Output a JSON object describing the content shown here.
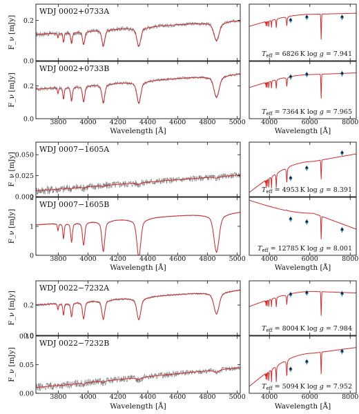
{
  "chart_data": [
    {
      "type": "line",
      "block": 1,
      "xlabel": "Wavelength [Å]",
      "spectrum_x_ticks": [
        3800,
        4000,
        4200,
        4400,
        4600,
        4800,
        5000
      ],
      "photometry_x_ticks": [
        4000,
        6000,
        8000
      ],
      "stars": [
        {
          "name": "WDJ 0002+0733A",
          "ylabel": "F_ν [mJy]",
          "ylim": [
            0,
            0.28
          ],
          "yticks": [
            0.0,
            0.2
          ],
          "ytick_labels": [
            "0.0",
            "0.2"
          ],
          "continuum_start": 0.13,
          "continuum_end": 0.2,
          "noise": 0.011,
          "line_depths": [
            0.03,
            0.035,
            0.04,
            0.05,
            0.06,
            0.07
          ],
          "model_start": 0.17,
          "model_peak": 0.23,
          "model_end": 0.235,
          "photometry_points": [
            [
              5050,
              0.2
            ],
            [
              5850,
              0.215
            ],
            [
              7600,
              0.215
            ]
          ],
          "teff": "6826",
          "logg": "7.941"
        },
        {
          "name": "WDJ 0002+0733B",
          "ylabel": "F_ν [mJy]",
          "ylim": [
            0,
            0.35
          ],
          "yticks": [
            0.0,
            0.2
          ],
          "ytick_labels": [
            "0.0",
            "0.2"
          ],
          "continuum_start": 0.18,
          "continuum_end": 0.275,
          "noise": 0.01,
          "line_depths": [
            0.045,
            0.055,
            0.065,
            0.075,
            0.085,
            0.1
          ],
          "model_start": 0.19,
          "model_peak": 0.27,
          "model_end": 0.28,
          "photometry_points": [
            [
              5050,
              0.255
            ],
            [
              5850,
              0.27
            ],
            [
              7600,
              0.275
            ]
          ],
          "teff": "7364",
          "logg": "7.965"
        }
      ]
    },
    {
      "type": "line",
      "block": 2,
      "xlabel": "Wavelength [Å]",
      "spectrum_x_ticks": [
        3800,
        4000,
        4200,
        4400,
        4600,
        4800,
        5000
      ],
      "photometry_x_ticks": [
        4000,
        6000,
        8000
      ],
      "stars": [
        {
          "name": "WDJ 0007−1605A",
          "ylabel": "F_ν [mJy]",
          "ylim": [
            0,
            0.065
          ],
          "yticks": [
            0.0,
            0.025,
            0.05
          ],
          "ytick_labels": [
            "0.000",
            "0.025",
            "0.050"
          ],
          "continuum_start": 0.007,
          "continuum_end": 0.026,
          "noise": 0.0045,
          "line_depths": [
            0.0005,
            0.0006,
            0.0007,
            0.0009,
            0.0011,
            0.0013
          ],
          "model_start": 0.005,
          "model_peak": 0.042,
          "model_end": 0.051,
          "photometry_points": [
            [
              5050,
              0.022
            ],
            [
              5850,
              0.034
            ],
            [
              7600,
              0.052
            ]
          ],
          "teff": "4953",
          "logg": "8.391"
        },
        {
          "name": "WDJ 0007−1605B",
          "ylabel": "F_ν [mJy]",
          "ylim": [
            0,
            2.0
          ],
          "yticks": [
            0,
            1,
            2
          ],
          "ytick_labels": [
            "0",
            "1",
            "2"
          ],
          "continuum_start": 1.05,
          "continuum_end": 1.5,
          "noise": 0.015,
          "line_depths": [
            0.3,
            0.4,
            0.5,
            0.6,
            0.8,
            1.0
          ],
          "model_start": 1.9,
          "model_peak": 1.45,
          "model_end": 0.9,
          "photometry_points": [
            [
              5050,
              1.25
            ],
            [
              5850,
              1.15
            ],
            [
              7600,
              0.88
            ]
          ],
          "teff": "12785",
          "logg": "8.001"
        }
      ]
    },
    {
      "type": "line",
      "block": 3,
      "xlabel": "Wavelength [Å]",
      "spectrum_x_ticks": [
        3800,
        4000,
        4200,
        4400,
        4600,
        4800,
        5000
      ],
      "photometry_x_ticks": [
        4000,
        6000,
        8000
      ],
      "stars": [
        {
          "name": "WDJ 0022−7232A",
          "ylabel": "F_ν [mJy]",
          "ylim": [
            0,
            0.36
          ],
          "yticks": [
            0.0,
            0.2
          ],
          "ytick_labels": [
            "0.0",
            "0.2"
          ],
          "continuum_start": 0.2,
          "continuum_end": 0.3,
          "noise": 0.007,
          "line_depths": [
            0.05,
            0.06,
            0.07,
            0.085,
            0.095,
            0.11
          ],
          "model_start": 0.19,
          "model_peak": 0.29,
          "model_end": 0.28,
          "photometry_points": [
            [
              5050,
              0.27
            ],
            [
              5850,
              0.28
            ],
            [
              7600,
              0.275
            ]
          ],
          "teff": "8004",
          "logg": "7.984"
        },
        {
          "name": "WDJ 0022−7232B",
          "ylabel": "F_ν [mJy]",
          "ylim": [
            0,
            0.1
          ],
          "yticks": [
            0.0,
            0.05,
            0.1
          ],
          "ytick_labels": [
            "0.00",
            "0.05",
            "0.10"
          ],
          "continuum_start": 0.01,
          "continuum_end": 0.045,
          "noise": 0.006,
          "line_depths": [
            0.001,
            0.0012,
            0.0015,
            0.002,
            0.0025,
            0.003
          ],
          "model_start": 0.012,
          "model_peak": 0.07,
          "model_end": 0.08,
          "photometry_points": [
            [
              5050,
              0.042
            ],
            [
              5850,
              0.055
            ],
            [
              7600,
              0.073
            ]
          ],
          "teff": "5094",
          "logg": "7.952"
        }
      ]
    }
  ],
  "colors": {
    "data": "#7f7f7f",
    "model": "#d62728",
    "photometry": "#1f77b4",
    "synthetic": "#111111"
  }
}
